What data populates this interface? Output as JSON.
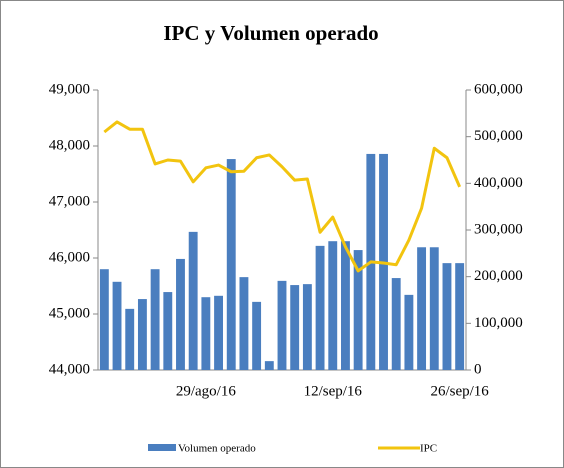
{
  "chart_data": {
    "type": "bar-line",
    "title": "IPC y Volumen operado",
    "categories": [
      null,
      null,
      null,
      null,
      null,
      null,
      null,
      null,
      "29/ago/16",
      null,
      null,
      null,
      null,
      null,
      null,
      null,
      null,
      null,
      "12/sep/16",
      null,
      null,
      null,
      null,
      null,
      null,
      null,
      null,
      null,
      "26/sep/16"
    ],
    "series": [
      {
        "name": "Volumen operado",
        "type": "bar",
        "axis": "y2",
        "color": "#4a7ebf",
        "values": [
          216000,
          189000,
          131000,
          152000,
          216000,
          167000,
          238000,
          296000,
          156000,
          159000,
          452000,
          199000,
          146000,
          19000,
          191000,
          182000,
          184000,
          266000,
          276000,
          276000,
          257000,
          463000,
          463000,
          197000,
          161000,
          263000,
          263000,
          229000,
          229000
        ]
      },
      {
        "name": "IPC",
        "type": "line",
        "axis": "y",
        "color": "#f2c40f",
        "values": [
          48250,
          48430,
          48300,
          48300,
          47680,
          47750,
          47730,
          47360,
          47610,
          47660,
          47540,
          47550,
          47790,
          47840,
          47630,
          47390,
          47410,
          46460,
          46730,
          46200,
          45770,
          45930,
          45910,
          45880,
          46320,
          46890,
          47960,
          47790,
          47270
        ]
      }
    ],
    "ylim": [
      44000,
      49000
    ],
    "yticks": [
      {
        "value": 44000,
        "label": "44,000"
      },
      {
        "value": 45000,
        "label": "45,000"
      },
      {
        "value": 46000,
        "label": "46,000"
      },
      {
        "value": 47000,
        "label": "47,000"
      },
      {
        "value": 48000,
        "label": "48,000"
      },
      {
        "value": 49000,
        "label": "49,000"
      }
    ],
    "y2lim": [
      0,
      600000
    ],
    "y2ticks": [
      0,
      {
        "value": 100000,
        "label": "100,000"
      },
      {
        "value": 200000,
        "label": "200,000"
      },
      {
        "value": 300000,
        "label": "300,000"
      },
      {
        "value": 400000,
        "label": "400,000"
      },
      {
        "value": 500000,
        "label": "500,000"
      },
      {
        "value": 600000,
        "label": "600,000"
      }
    ]
  }
}
